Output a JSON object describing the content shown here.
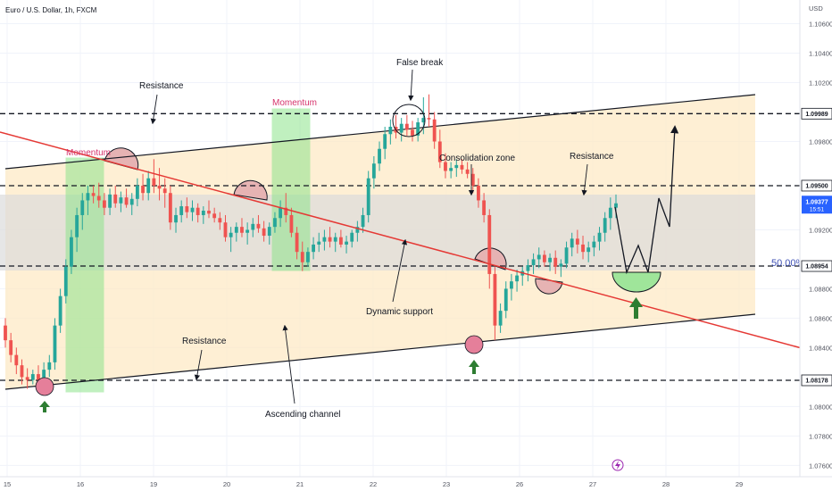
{
  "header": {
    "title": "Euro / U.S. Dollar, 1h, FXCM"
  },
  "colors": {
    "up": "#26a69a",
    "down": "#ef5350",
    "channel": "#fde9c6",
    "range_band": "#dcdcdc",
    "momentum": "#8ee48c",
    "dynamic_support": "#e53935",
    "accent_label": "#d6336c"
  },
  "chart_data": {
    "type": "candlestick",
    "symbol": "Euro / U.S. Dollar",
    "timeframe": "1h",
    "source": "FXCM",
    "currency_label": "USD",
    "ylim": [
      1.074,
      1.109
    ],
    "y_ticks": [
      "1.10600",
      "1.10400",
      "1.10200",
      "1.09800",
      "1.09200",
      "1.08800",
      "1.08600",
      "1.08400",
      "1.08000",
      "1.07800",
      "1.07600"
    ],
    "x_ticks": [
      "15",
      "16",
      "19",
      "20",
      "21",
      "22",
      "23",
      "26",
      "27",
      "28",
      "29"
    ],
    "levels": [
      {
        "price": "1.09989",
        "style": "dashed"
      },
      {
        "price": "1.09500",
        "style": "dashed"
      },
      {
        "price": "1.08954",
        "style": "dashed"
      },
      {
        "price": "1.08178",
        "style": "dashed"
      }
    ],
    "current_price": "1.09377",
    "countdown": "15:51",
    "fib_label": "50.00%",
    "series": [
      {
        "candles": [
          [
            1.0855,
            1.086,
            1.084,
            1.0845
          ],
          [
            1.0845,
            1.085,
            1.083,
            1.0835
          ],
          [
            1.0835,
            1.084,
            1.0822,
            1.0828
          ],
          [
            1.0828,
            1.0832,
            1.0815,
            1.082
          ],
          [
            1.082,
            1.0826,
            1.0812,
            1.0818
          ],
          [
            1.0818,
            1.0825,
            1.0815,
            1.0822
          ],
          [
            1.0822,
            1.0828,
            1.0815,
            1.0818
          ],
          [
            1.0818,
            1.083,
            1.0815,
            1.0825
          ],
          [
            1.0825,
            1.0835,
            1.082,
            1.083
          ],
          [
            1.083,
            1.086,
            1.0825,
            1.0855
          ],
          [
            1.0855,
            1.088,
            1.085,
            1.0875
          ],
          [
            1.0875,
            1.09,
            1.087,
            1.0895
          ],
          [
            1.0895,
            1.092,
            1.089,
            1.0915
          ],
          [
            1.0915,
            1.0935,
            1.0905,
            1.093
          ],
          [
            1.093,
            1.0945,
            1.092,
            1.094
          ],
          [
            1.094,
            1.095,
            1.093,
            1.0945
          ],
          [
            1.0945,
            1.095,
            1.0938,
            1.0943
          ],
          [
            1.0943,
            1.0952,
            1.0935,
            1.094
          ],
          [
            1.094,
            1.0945,
            1.093,
            1.0935
          ],
          [
            1.0935,
            1.0948,
            1.093,
            1.0944
          ],
          [
            1.0944,
            1.095,
            1.0935,
            1.0938
          ],
          [
            1.0938,
            1.0946,
            1.0932,
            1.0942
          ],
          [
            1.0942,
            1.0948,
            1.0935,
            1.0937
          ],
          [
            1.0937,
            1.0945,
            1.093,
            1.0941
          ],
          [
            1.0941,
            1.0955,
            1.0936,
            1.095
          ],
          [
            1.095,
            1.0958,
            1.094,
            1.0945
          ],
          [
            1.0945,
            1.096,
            1.094,
            1.0955
          ],
          [
            1.0955,
            1.0968,
            1.0945,
            1.095
          ],
          [
            1.095,
            1.0962,
            1.094,
            1.0948
          ],
          [
            1.0948,
            1.0955,
            1.0935,
            1.0945
          ],
          [
            1.0945,
            1.095,
            1.092,
            1.0925
          ],
          [
            1.0925,
            1.0935,
            1.0918,
            1.093
          ],
          [
            1.093,
            1.094,
            1.0925,
            1.0936
          ],
          [
            1.0936,
            1.0942,
            1.0928,
            1.0932
          ],
          [
            1.0932,
            1.094,
            1.0926,
            1.0935
          ],
          [
            1.0935,
            1.0938,
            1.0925,
            1.093
          ],
          [
            1.093,
            1.0936,
            1.0924,
            1.0933
          ],
          [
            1.0933,
            1.094,
            1.0928,
            1.0931
          ],
          [
            1.0931,
            1.0935,
            1.0925,
            1.0928
          ],
          [
            1.0928,
            1.0932,
            1.092,
            1.0925
          ],
          [
            1.0925,
            1.093,
            1.0912,
            1.0915
          ],
          [
            1.0915,
            1.0922,
            1.0905,
            1.0918
          ],
          [
            1.0918,
            1.0925,
            1.0912,
            1.0922
          ],
          [
            1.0922,
            1.0928,
            1.0915,
            1.0918
          ],
          [
            1.0918,
            1.0925,
            1.091,
            1.092
          ],
          [
            1.092,
            1.0928,
            1.0915,
            1.0924
          ],
          [
            1.0924,
            1.093,
            1.0918,
            1.0921
          ],
          [
            1.0921,
            1.0926,
            1.0912,
            1.0916
          ],
          [
            1.0916,
            1.0925,
            1.091,
            1.0922
          ],
          [
            1.0922,
            1.0932,
            1.0918,
            1.0928
          ],
          [
            1.0928,
            1.094,
            1.0922,
            1.0935
          ],
          [
            1.0935,
            1.0945,
            1.0925,
            1.093
          ],
          [
            1.093,
            1.0935,
            1.0915,
            1.0918
          ],
          [
            1.0918,
            1.0922,
            1.09,
            1.0905
          ],
          [
            1.0905,
            1.0912,
            1.0892,
            1.0898
          ],
          [
            1.0898,
            1.0908,
            1.0895,
            1.0905
          ],
          [
            1.0905,
            1.0915,
            1.09,
            1.091
          ],
          [
            1.091,
            1.0918,
            1.0905,
            1.0912
          ],
          [
            1.0912,
            1.092,
            1.0906,
            1.0915
          ],
          [
            1.0915,
            1.0922,
            1.0908,
            1.0912
          ],
          [
            1.0912,
            1.0918,
            1.0905,
            1.0915
          ],
          [
            1.0915,
            1.092,
            1.0908,
            1.091
          ],
          [
            1.091,
            1.0916,
            1.0904,
            1.0912
          ],
          [
            1.0912,
            1.092,
            1.0908,
            1.0918
          ],
          [
            1.0918,
            1.0926,
            1.0912,
            1.0922
          ],
          [
            1.0922,
            1.0935,
            1.0918,
            1.093
          ],
          [
            1.093,
            1.096,
            1.0925,
            1.0955
          ],
          [
            1.0955,
            1.097,
            1.0948,
            1.0965
          ],
          [
            1.0965,
            1.098,
            1.096,
            1.0975
          ],
          [
            1.0975,
            1.099,
            1.0968,
            1.0985
          ],
          [
            1.0985,
            1.0995,
            1.0978,
            1.099
          ],
          [
            1.099,
            1.0998,
            1.0982,
            1.0986
          ],
          [
            1.0986,
            1.0996,
            1.098,
            1.0992
          ],
          [
            1.0992,
            1.0998,
            1.0984,
            1.0988
          ],
          [
            1.0988,
            1.0994,
            1.098,
            1.0984
          ],
          [
            1.0984,
            1.0996,
            1.098,
            1.0993
          ],
          [
            1.0993,
            1.101,
            1.0985,
            1.0996
          ],
          [
            1.0996,
            1.1012,
            1.099,
            1.0995
          ],
          [
            1.0995,
            1.1,
            1.0975,
            1.098
          ],
          [
            1.098,
            1.0988,
            1.0962,
            1.0966
          ],
          [
            1.0966,
            1.0972,
            1.0955,
            1.096
          ],
          [
            1.096,
            1.0966,
            1.0955,
            1.0962
          ],
          [
            1.0962,
            1.0968,
            1.0956,
            1.0964
          ],
          [
            1.0964,
            1.0968,
            1.0958,
            1.0961
          ],
          [
            1.0961,
            1.0966,
            1.0955,
            1.0958
          ],
          [
            1.0958,
            1.0962,
            1.0945,
            1.095
          ],
          [
            1.095,
            1.0955,
            1.0935,
            1.094
          ],
          [
            1.094,
            1.0945,
            1.0925,
            1.093
          ],
          [
            1.093,
            1.0934,
            1.088,
            1.089
          ],
          [
            1.089,
            1.0895,
            1.0845,
            1.0855
          ],
          [
            1.0855,
            1.087,
            1.085,
            1.0865
          ],
          [
            1.0865,
            1.0885,
            1.086,
            1.088
          ],
          [
            1.088,
            1.089,
            1.0872,
            1.0885
          ],
          [
            1.0885,
            1.0893,
            1.0878,
            1.0889
          ],
          [
            1.0889,
            1.0895,
            1.0882,
            1.0892
          ],
          [
            1.0892,
            1.09,
            1.0885,
            1.0896
          ],
          [
            1.0896,
            1.0904,
            1.089,
            1.09
          ],
          [
            1.09,
            1.0908,
            1.0894,
            1.0903
          ],
          [
            1.0903,
            1.0906,
            1.0895,
            1.0898
          ],
          [
            1.0898,
            1.0904,
            1.0892,
            1.0901
          ],
          [
            1.0901,
            1.0906,
            1.089,
            1.0895
          ],
          [
            1.0895,
            1.09,
            1.0888,
            1.0897
          ],
          [
            1.0897,
            1.0912,
            1.0894,
            1.0908
          ],
          [
            1.0908,
            1.0918,
            1.0902,
            1.0914
          ],
          [
            1.0914,
            1.092,
            1.0904,
            1.091
          ],
          [
            1.091,
            1.0916,
            1.09,
            1.0905
          ],
          [
            1.0905,
            1.0912,
            1.0898,
            1.0908
          ],
          [
            1.0908,
            1.0916,
            1.0902,
            1.0912
          ],
          [
            1.0912,
            1.0922,
            1.0906,
            1.0918
          ],
          [
            1.0918,
            1.0932,
            1.0912,
            1.0928
          ],
          [
            1.0928,
            1.0942,
            1.092,
            1.0935
          ],
          [
            1.0935,
            1.0944,
            1.0928,
            1.0938
          ]
        ]
      }
    ],
    "annotations": [
      "Resistance",
      "Momentum",
      "Momentum",
      "False break",
      "Consolidation zone",
      "Resistance",
      "Dynamic support",
      "Resistance",
      "Ascending channel"
    ]
  }
}
